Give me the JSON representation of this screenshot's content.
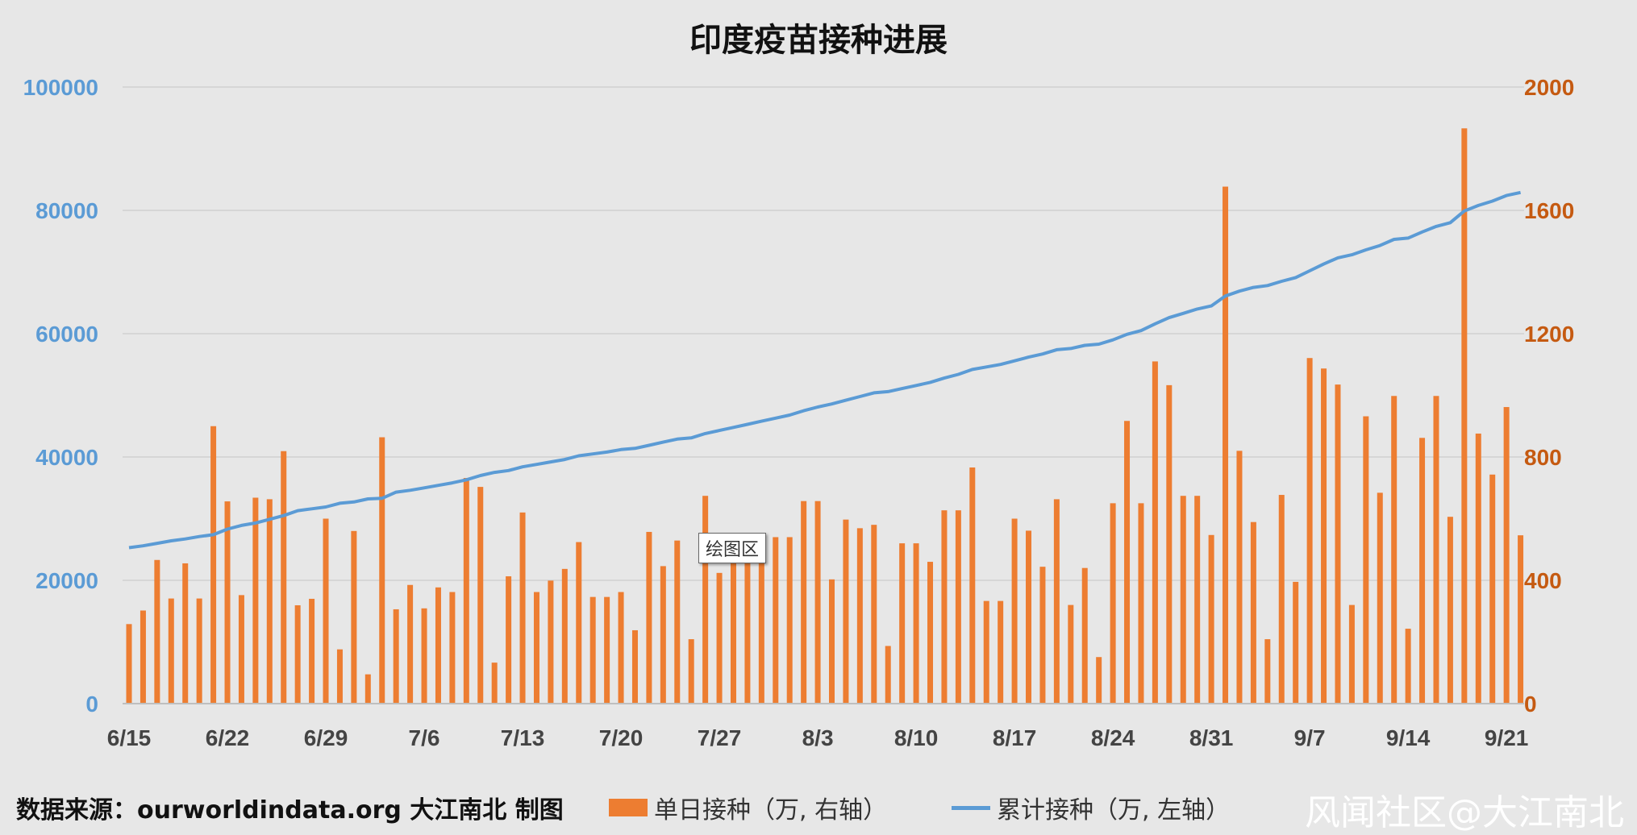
{
  "watermark": "风闻社区@大江南北",
  "source": "数据来源：ourworldindata.org 大江南北 制图",
  "tooltip": "绘图区",
  "colors": {
    "bar": "#ed7d31",
    "line": "#5b9bd5",
    "left_axis": "#5b9bd5",
    "right_axis": "#c55a11",
    "background": "#e7e7e7",
    "grid": "#d0d0d0"
  },
  "chart_data": {
    "type": "bar",
    "title": "印度疫苗接种进展",
    "x_tick_labels": [
      "6/15",
      "6/22",
      "6/29",
      "7/6",
      "7/13",
      "7/20",
      "7/27",
      "8/3",
      "8/10",
      "8/17",
      "8/24",
      "8/31",
      "9/7",
      "9/14",
      "9/21"
    ],
    "y_left": {
      "min": 0,
      "max": 100000,
      "ticks": [
        0,
        20000,
        40000,
        60000,
        80000,
        100000
      ]
    },
    "y_right": {
      "min": 0,
      "max": 2000,
      "ticks": [
        0,
        400,
        800,
        1200,
        1600,
        2000
      ]
    },
    "grid": true,
    "legend_position": "bottom",
    "series": [
      {
        "name": "单日接种（万, 右轴）",
        "type": "bar",
        "axis": "right",
        "values": [
          258,
          302,
          466,
          341,
          455,
          341,
          900,
          656,
          352,
          668,
          663,
          819,
          319,
          340,
          600,
          176,
          560,
          95,
          864,
          306,
          385,
          309,
          377,
          362,
          732,
          703,
          133,
          413,
          620,
          362,
          399,
          437,
          524,
          346,
          346,
          362,
          238,
          557,
          446,
          529,
          209,
          674,
          424,
          470,
          502,
          505,
          540,
          540,
          657,
          657,
          403,
          597,
          569,
          580,
          187,
          520,
          520,
          460,
          627,
          627,
          766,
          333,
          333,
          600,
          561,
          444,
          663,
          320,
          440,
          151,
          650,
          917,
          650,
          1110,
          1033,
          674,
          674,
          547,
          1677,
          820,
          589,
          209,
          677,
          395,
          1121,
          1087,
          1035,
          320,
          932,
          684,
          998,
          243,
          862,
          998,
          606,
          1866,
          876,
          743,
          962,
          546
        ]
      },
      {
        "name": "累计接种（万, 左轴）",
        "type": "line",
        "axis": "left",
        "values": [
          25300,
          25600,
          26000,
          26400,
          26700,
          27100,
          27400,
          28300,
          28900,
          29300,
          29900,
          30500,
          31300,
          31600,
          31900,
          32500,
          32700,
          33200,
          33300,
          34300,
          34600,
          35000,
          35400,
          35800,
          36300,
          37000,
          37500,
          37800,
          38400,
          38800,
          39200,
          39600,
          40200,
          40500,
          40800,
          41200,
          41400,
          41900,
          42400,
          42900,
          43100,
          43800,
          44300,
          44800,
          45300,
          45800,
          46300,
          46800,
          47500,
          48100,
          48600,
          49200,
          49800,
          50400,
          50600,
          51100,
          51600,
          52100,
          52800,
          53400,
          54200,
          54600,
          55000,
          55600,
          56200,
          56700,
          57400,
          57600,
          58100,
          58300,
          59000,
          59900,
          60500,
          61600,
          62600,
          63300,
          64000,
          64500,
          66100,
          66900,
          67500,
          67800,
          68500,
          69100,
          70200,
          71300,
          72300,
          72800,
          73600,
          74300,
          75300,
          75500,
          76500,
          77400,
          78000,
          79900,
          80800,
          81500,
          82400,
          82900
        ]
      }
    ]
  }
}
